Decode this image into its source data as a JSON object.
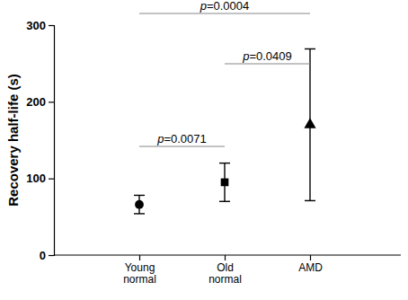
{
  "chart_data": {
    "type": "scatter",
    "y_label": "Recovery half-life (s)",
    "categories": [
      "Young normal",
      "Old normal",
      "AMD"
    ],
    "series": [
      {
        "marker": "circle",
        "color": "#000000",
        "values": [
          66,
          null,
          null
        ],
        "errors": [
          12,
          null,
          null
        ]
      },
      {
        "marker": "square",
        "color": "#000000",
        "values": [
          null,
          95,
          null
        ],
        "errors": [
          null,
          25,
          null
        ]
      },
      {
        "marker": "triangle",
        "color": "#000000",
        "values": [
          null,
          null,
          170
        ],
        "errors": [
          null,
          null,
          99
        ]
      }
    ],
    "ylim": [
      0,
      300
    ],
    "yticks": [
      0,
      100,
      200,
      300
    ],
    "annotations": [
      {
        "text": "p=0.0071",
        "from": "Young normal",
        "to": "Old normal"
      },
      {
        "text": "p=0.0409",
        "from": "Old normal",
        "to": "AMD"
      },
      {
        "text": "p=0.0004",
        "from": "Young normal",
        "to": "AMD"
      }
    ]
  }
}
